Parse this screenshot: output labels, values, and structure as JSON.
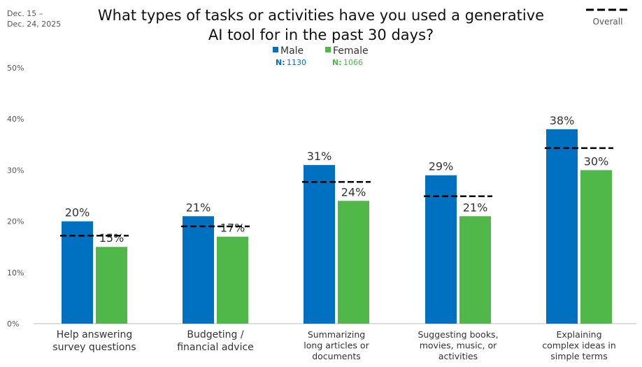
{
  "header": {
    "date_line1": "Dec. 15 –",
    "date_line2": "Dec. 24, 2025",
    "overall_legend": "Overall"
  },
  "colors": {
    "male": "#0070C0",
    "female": "#4FB848",
    "overall": "#000000"
  },
  "chart_data": {
    "type": "bar",
    "title_line1": "What types of tasks or activities have you used a generative",
    "title_line2": "AI tool for in the past 30 days?",
    "categories": [
      [
        "Help answering",
        "survey questions"
      ],
      [
        "Budgeting /",
        "financial advice"
      ],
      [
        "Summarizing",
        "long articles or",
        "documents"
      ],
      [
        "Suggesting books,",
        "movies, music, or",
        "activities"
      ],
      [
        "Explaining",
        "complex ideas in",
        "simple terms"
      ]
    ],
    "series": [
      {
        "name": "Male",
        "n_label": "N:",
        "n": "1130",
        "values": [
          20,
          21,
          31,
          29,
          38
        ],
        "labels": [
          "20%",
          "21%",
          "31%",
          "29%",
          "38%"
        ]
      },
      {
        "name": "Female",
        "n_label": "N:",
        "n": "1066",
        "values": [
          15,
          17,
          24,
          21,
          30
        ],
        "labels": [
          "15%",
          "17%",
          "24%",
          "21%",
          "30%"
        ]
      }
    ],
    "overall": {
      "name": "Overall",
      "values": [
        17.2,
        19.0,
        27.7,
        24.9,
        34.3
      ]
    },
    "yticks": [
      "0%",
      "10%",
      "20%",
      "30%",
      "40%",
      "50%"
    ],
    "ylim": [
      0,
      50
    ],
    "grid": false,
    "legend": "top-center"
  }
}
